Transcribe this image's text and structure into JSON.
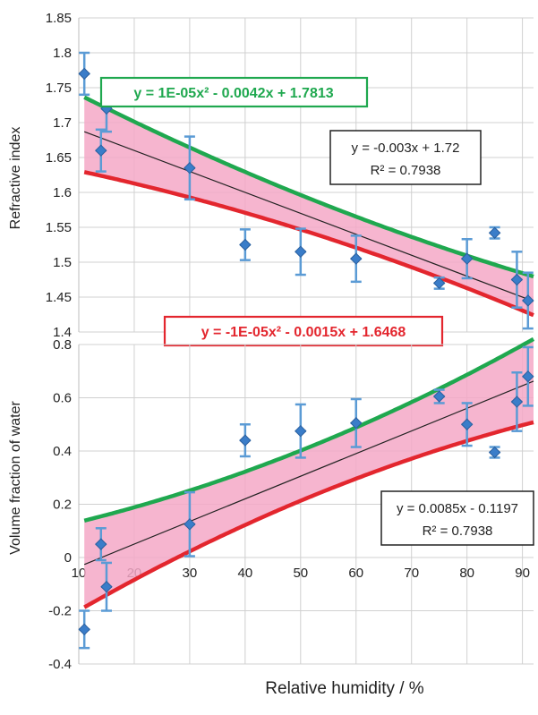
{
  "chart_data": [
    {
      "type": "scatter",
      "panel": "top",
      "ylabel": "Refractive index",
      "xlim": [
        10,
        92
      ],
      "ylim": [
        1.4,
        1.85
      ],
      "yticks": [
        1.4,
        1.45,
        1.5,
        1.55,
        1.6,
        1.65,
        1.7,
        1.75,
        1.8,
        1.85
      ],
      "ytick_labels": [
        "1.4",
        "1.45",
        "1.5",
        "1.55",
        "1.6",
        "1.65",
        "1.7",
        "1.75",
        "1.8",
        "1.85"
      ],
      "grid": true,
      "points": [
        {
          "x": 11,
          "y": 1.77,
          "yerr": 0.03
        },
        {
          "x": 14,
          "y": 1.66,
          "yerr": 0.03
        },
        {
          "x": 15,
          "y": 1.72,
          "yerr": 0.033
        },
        {
          "x": 30,
          "y": 1.635,
          "yerr": 0.045
        },
        {
          "x": 40,
          "y": 1.525,
          "yerr": 0.022
        },
        {
          "x": 50,
          "y": 1.515,
          "yerr": 0.033
        },
        {
          "x": 60,
          "y": 1.505,
          "yerr": 0.033
        },
        {
          "x": 75,
          "y": 1.47,
          "yerr": 0.008
        },
        {
          "x": 80,
          "y": 1.505,
          "yerr": 0.028
        },
        {
          "x": 85,
          "y": 1.542,
          "yerr": 0.008
        },
        {
          "x": 89,
          "y": 1.475,
          "yerr": 0.04
        },
        {
          "x": 91,
          "y": 1.445,
          "yerr": 0.04
        }
      ],
      "colors": {
        "points": "#3a7dc9",
        "errorbars": "#5b9bd5",
        "upper": "#1fa84f",
        "lower": "#e3262e",
        "band": "#f4a8c7",
        "fit": "#222222"
      },
      "upper_curve": {
        "a": 1e-05,
        "b": -0.0042,
        "c": 1.7813,
        "label": "y = 1E-05x² - 0.0042x + 1.7813"
      },
      "lower_curve": {
        "a": -1e-05,
        "b": -0.0015,
        "c": 1.6468,
        "label": "y = -1E-05x² - 0.0015x + 1.6468"
      },
      "fit": {
        "slope": -0.003,
        "intercept": 1.72,
        "eq": "y = -0.003x + 1.72",
        "r2": "R² = 0.7938"
      }
    },
    {
      "type": "scatter",
      "panel": "bottom",
      "ylabel": "Volume fraction of water",
      "xlabel": "Relative humidity / %",
      "xlim": [
        10,
        92
      ],
      "ylim": [
        -0.4,
        0.8
      ],
      "xticks": [
        10,
        20,
        30,
        40,
        50,
        60,
        70,
        80,
        90
      ],
      "xtick_labels": [
        "10",
        "20",
        "30",
        "40",
        "50",
        "60",
        "70",
        "80",
        "90"
      ],
      "yticks": [
        -0.4,
        -0.2,
        0,
        0.2,
        0.4,
        0.6,
        0.8
      ],
      "ytick_labels": [
        "-0.4",
        "-0.2",
        "0",
        "0.2",
        "0.4",
        "0.6",
        "0.8"
      ],
      "grid": true,
      "points": [
        {
          "x": 11,
          "y": -0.27,
          "yerr": 0.07
        },
        {
          "x": 14,
          "y": 0.05,
          "yerr": 0.06
        },
        {
          "x": 15,
          "y": -0.11,
          "yerr": 0.09
        },
        {
          "x": 30,
          "y": 0.125,
          "yerr": 0.12
        },
        {
          "x": 40,
          "y": 0.44,
          "yerr": 0.06
        },
        {
          "x": 50,
          "y": 0.475,
          "yerr": 0.1
        },
        {
          "x": 60,
          "y": 0.505,
          "yerr": 0.09
        },
        {
          "x": 75,
          "y": 0.605,
          "yerr": 0.025
        },
        {
          "x": 80,
          "y": 0.5,
          "yerr": 0.08
        },
        {
          "x": 85,
          "y": 0.395,
          "yerr": 0.02
        },
        {
          "x": 89,
          "y": 0.585,
          "yerr": 0.11
        },
        {
          "x": 91,
          "y": 0.68,
          "yerr": 0.11
        }
      ],
      "colors": {
        "points": "#3a7dc9",
        "errorbars": "#5b9bd5",
        "upper": "#1fa84f",
        "lower": "#e3262e",
        "band": "#f4a8c7",
        "fit": "#222222"
      },
      "upper_curve": {
        "a": 4e-05,
        "b": 0.0043,
        "c": 0.0865
      },
      "lower_curve": {
        "a": -4e-05,
        "b": 0.0127,
        "c": -0.3219
      },
      "fit": {
        "slope": 0.0085,
        "intercept": -0.1197,
        "eq": "y = 0.0085x - 0.1197",
        "r2": "R² = 0.7938"
      }
    }
  ]
}
